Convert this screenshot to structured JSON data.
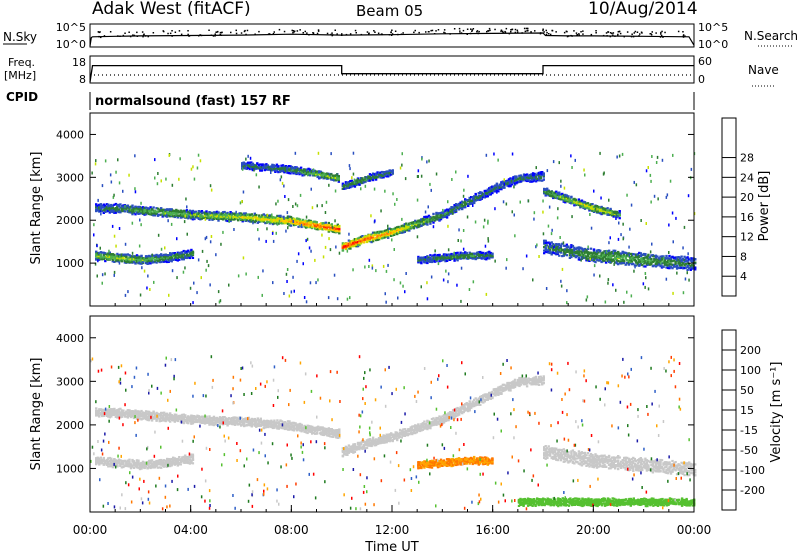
{
  "header": {
    "title_left": "Adak West (fitACF)",
    "title_center": "Beam 05",
    "title_right": "10/Aug/2014"
  },
  "noise_panel": {
    "label": "N.Sky",
    "left_ticks": [
      "10^5",
      "10^0"
    ],
    "right_ticks": [
      "10^5",
      "10^0"
    ],
    "right_label": "N.Search"
  },
  "freq_panel": {
    "label_line1": "Freq.",
    "label_line2": "[MHz]",
    "left_ticks": [
      "18",
      "8"
    ],
    "right_ticks": [
      "60",
      "0"
    ],
    "right_label": "Nave"
  },
  "cpid": {
    "label": "CPID",
    "text": "normalsound (fast) 157 RF"
  },
  "panels": {
    "power": {
      "ylabel": "Slant Range [km]",
      "cbar_label": "Power [dB]"
    },
    "velocity": {
      "ylabel": "Slant Range [km]",
      "cbar_label": "Velocity [m s⁻¹]"
    }
  },
  "xaxis": {
    "label": "Time UT",
    "ticks": [
      "00:00",
      "04:00",
      "08:00",
      "12:00",
      "16:00",
      "20:00",
      "00:00"
    ]
  },
  "chart_data": [
    {
      "type": "line",
      "name": "noise",
      "x_range": [
        0,
        24
      ],
      "series": [
        {
          "name": "N.Sky",
          "style": "solid",
          "x": [
            0,
            0.05,
            0.1,
            1,
            2,
            4,
            6,
            8,
            10,
            12,
            14,
            16,
            18,
            18.1,
            19,
            20,
            22,
            23.8,
            24
          ],
          "y": [
            0.0,
            2.0,
            2.2,
            2.3,
            2.4,
            2.5,
            2.6,
            2.8,
            2.6,
            2.7,
            2.9,
            3.0,
            3.1,
            2.5,
            2.4,
            2.4,
            2.3,
            2.2,
            0.2
          ]
        }
      ]
    },
    {
      "type": "line",
      "name": "frequency",
      "x_range": [
        0,
        24
      ],
      "ylim": [
        8,
        18
      ],
      "series": [
        {
          "name": "Freq.",
          "style": "solid",
          "x": [
            0,
            0.1,
            10.0,
            10.0,
            18.0,
            18.0,
            24
          ],
          "y": [
            8,
            14.3,
            14.3,
            11.2,
            11.2,
            14.3,
            14.3
          ]
        },
        {
          "name": "Nave",
          "style": "dotted",
          "x": [
            0,
            24
          ],
          "y": [
            10.7,
            10.7
          ]
        }
      ]
    },
    {
      "type": "heatmap",
      "name": "power",
      "x_range": [
        0,
        24
      ],
      "ylim": [
        0,
        4500
      ],
      "colorbar": {
        "ticks": [
          4,
          8,
          12,
          16,
          20,
          24,
          28
        ],
        "range": [
          0,
          32
        ],
        "colors": [
          "#0000ff",
          "#2a4fc0",
          "#2e7d32",
          "#4caf50",
          "#c6e000",
          "#ffc800",
          "#ff8c00",
          "#ff4500",
          "#ff0000"
        ]
      },
      "bands": [
        {
          "x": [
            0.2,
            1,
            2,
            3,
            4,
            5,
            6,
            7,
            8,
            9,
            9.9
          ],
          "y": [
            2300,
            2300,
            2250,
            2200,
            2150,
            2120,
            2100,
            2050,
            2000,
            1900,
            1820
          ],
          "thickness": 150,
          "power": [
            8,
            10,
            12,
            14,
            14,
            16,
            18,
            20,
            24,
            28,
            30
          ]
        },
        {
          "x": [
            10.0,
            11,
            12,
            13,
            14,
            15,
            16,
            17,
            18
          ],
          "y": [
            1400,
            1600,
            1750,
            1950,
            2150,
            2450,
            2750,
            3000,
            3050
          ],
          "thickness": 150,
          "power": [
            30,
            28,
            24,
            14,
            10,
            10,
            8,
            8,
            8
          ]
        },
        {
          "x": [
            0.2,
            1,
            2,
            3,
            4.1
          ],
          "y": [
            1200,
            1150,
            1100,
            1150,
            1250
          ],
          "thickness": 150,
          "power": [
            14,
            16,
            14,
            12,
            10
          ]
        },
        {
          "x": [
            6,
            7,
            8,
            9,
            9.9
          ],
          "y": [
            3300,
            3250,
            3200,
            3100,
            3000
          ],
          "thickness": 120,
          "power": [
            8,
            8,
            10,
            14,
            16
          ]
        },
        {
          "x": [
            10.0,
            11,
            12
          ],
          "y": [
            2800,
            3000,
            3150
          ],
          "thickness": 120,
          "power": [
            10,
            10,
            8
          ]
        },
        {
          "x": [
            13,
            14,
            15,
            16
          ],
          "y": [
            1100,
            1150,
            1200,
            1200
          ],
          "thickness": 120,
          "power": [
            8,
            10,
            12,
            8
          ]
        },
        {
          "x": [
            18,
            19,
            20,
            21,
            22,
            23,
            24
          ],
          "y": [
            1400,
            1300,
            1200,
            1150,
            1100,
            1050,
            1000
          ],
          "thickness": 250,
          "power": [
            8,
            10,
            12,
            14,
            12,
            10,
            8
          ]
        },
        {
          "x": [
            18,
            19,
            20,
            21
          ],
          "y": [
            2700,
            2500,
            2300,
            2150
          ],
          "thickness": 120,
          "power": [
            12,
            16,
            20,
            14
          ]
        }
      ]
    },
    {
      "type": "heatmap",
      "name": "velocity",
      "x_range": [
        0,
        24
      ],
      "ylim": [
        0,
        4500
      ],
      "colorbar": {
        "ticks": [
          200,
          100,
          50,
          15,
          -15,
          -50,
          -100,
          -200
        ],
        "colors": [
          "#1a1aa8",
          "#2e5fc7",
          "#1f7a1f",
          "#55c030",
          "#c8c8c8",
          "#ffa500",
          "#ff7800",
          "#ff3c00",
          "#ff0000"
        ]
      },
      "bands": [
        {
          "x": [
            0.2,
            1,
            2,
            3,
            4,
            5,
            6,
            7,
            8,
            9,
            9.9
          ],
          "y": [
            2300,
            2300,
            2250,
            2200,
            2150,
            2120,
            2100,
            2050,
            2000,
            1900,
            1820
          ],
          "thickness": 150,
          "velocity": 0
        },
        {
          "x": [
            10.0,
            11,
            12,
            13,
            14,
            15,
            16,
            17,
            18
          ],
          "y": [
            1400,
            1600,
            1750,
            1950,
            2150,
            2450,
            2750,
            3000,
            3050
          ],
          "thickness": 150,
          "velocity": 0
        },
        {
          "x": [
            0.2,
            1,
            2,
            3,
            4.1
          ],
          "y": [
            1200,
            1150,
            1100,
            1150,
            1250
          ],
          "thickness": 150,
          "velocity": 0
        },
        {
          "x": [
            13,
            14,
            15,
            16
          ],
          "y": [
            1100,
            1150,
            1200,
            1200
          ],
          "thickness": 120,
          "velocity": -50
        },
        {
          "x": [
            18,
            19,
            20,
            21,
            22,
            23,
            24
          ],
          "y": [
            1400,
            1300,
            1200,
            1150,
            1100,
            1050,
            1000
          ],
          "thickness": 250,
          "velocity": 0
        },
        {
          "x": [
            17,
            18,
            19,
            20,
            21,
            22,
            23,
            24
          ],
          "y": [
            250,
            250,
            250,
            250,
            250,
            250,
            250,
            250
          ],
          "thickness": 120,
          "velocity": 40
        }
      ]
    }
  ]
}
